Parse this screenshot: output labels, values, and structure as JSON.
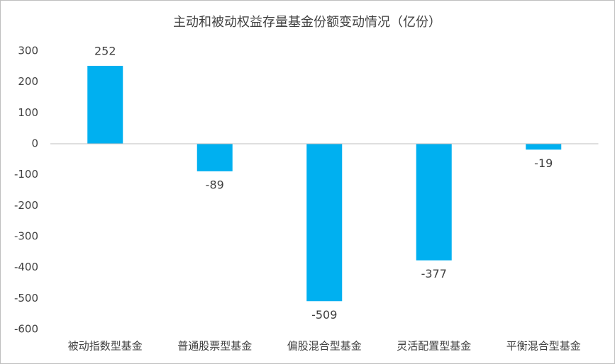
{
  "chart_data": {
    "type": "bar",
    "title": "主动和被动权益存量基金份额变动情况（亿份）",
    "categories": [
      "被动指数型基金",
      "普通股票型基金",
      "偏股混合型基金",
      "灵活配置型基金",
      "平衡混合型基金"
    ],
    "values": [
      252,
      -89,
      -509,
      -377,
      -19
    ],
    "color": "#00b0f0",
    "ylim": [
      -600,
      300
    ],
    "yticks": [
      -600,
      -500,
      -400,
      -300,
      -200,
      -100,
      0,
      100,
      200,
      300
    ],
    "grid": false
  }
}
